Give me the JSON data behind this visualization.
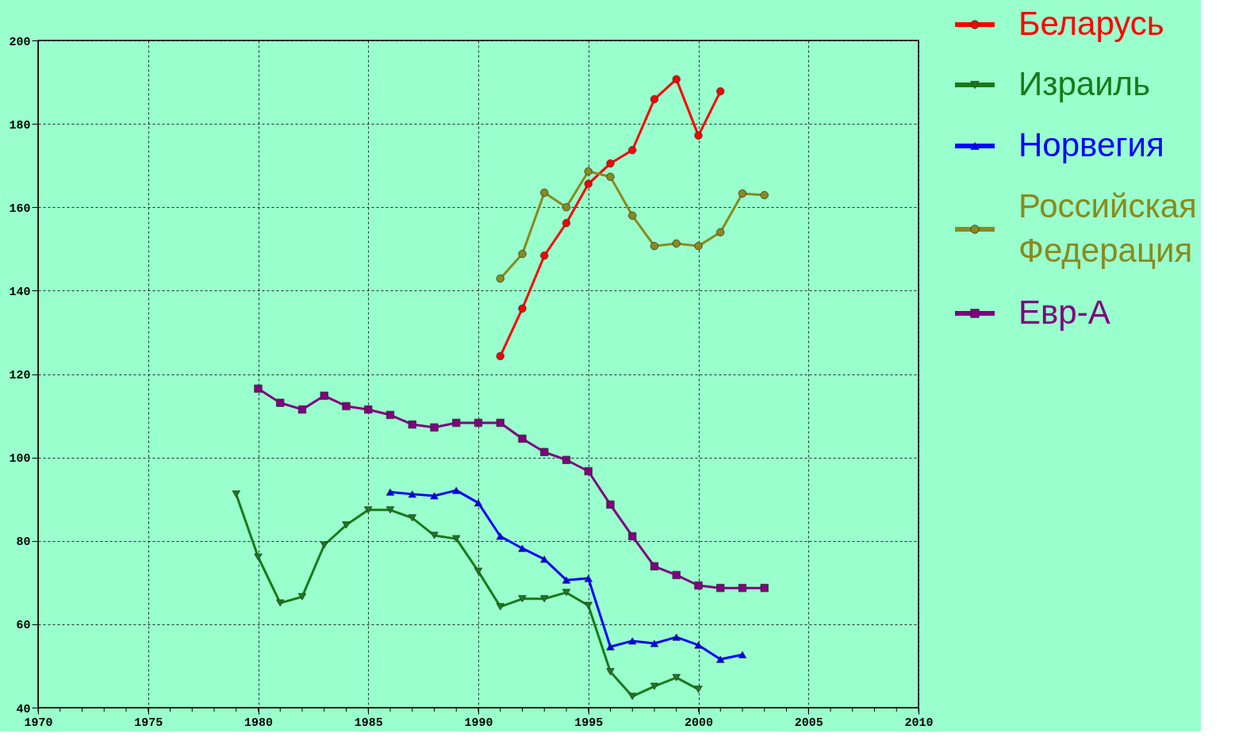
{
  "chart_data": {
    "type": "line",
    "xlim": [
      1970,
      2010
    ],
    "xticks": [
      1970,
      1975,
      1980,
      1985,
      1990,
      1995,
      2000,
      2005,
      2010
    ],
    "ylim": [
      40,
      200
    ],
    "yticks": [
      40,
      60,
      80,
      100,
      120,
      140,
      160,
      180,
      200
    ],
    "grid": true,
    "legend": "right",
    "line_style": "solid",
    "series": [
      {
        "name": "Беларусь",
        "color": "#ff0000",
        "marker": "circle",
        "x": [
          1991,
          1992,
          1993,
          1994,
          1995,
          1996,
          1997,
          1998,
          1999,
          2000,
          2001
        ],
        "values": [
          124.3,
          135.7,
          148.4,
          156.2,
          165.6,
          170.5,
          173.7,
          185.9,
          190.7,
          177.2,
          187.8
        ]
      },
      {
        "name": "Израиль",
        "color": "#1a7a1a",
        "marker": "triangle-down",
        "x": [
          1979,
          1980,
          1981,
          1982,
          1983,
          1984,
          1985,
          1986,
          1987,
          1988,
          1989,
          1990,
          1991,
          1992,
          1993,
          1994,
          1995,
          1996,
          1997,
          1998,
          1999,
          2000
        ],
        "values": [
          91.2,
          76.1,
          65.1,
          66.6,
          79.0,
          83.8,
          87.4,
          87.4,
          85.5,
          81.3,
          80.5,
          72.7,
          64.2,
          66.1,
          66.1,
          67.6,
          64.5,
          48.6,
          42.7,
          45.1,
          47.2,
          44.4
        ]
      },
      {
        "name": "Норвегия",
        "color": "#0000ff",
        "marker": "triangle",
        "x": [
          1986,
          1987,
          1988,
          1989,
          1990,
          1991,
          1992,
          1993,
          1994,
          1995,
          1996,
          1997,
          1998,
          1999,
          2000,
          2001,
          2002
        ],
        "values": [
          91.7,
          91.2,
          90.8,
          92.1,
          89.1,
          81.1,
          78.2,
          75.6,
          70.6,
          71.0,
          54.6,
          56.0,
          55.4,
          56.9,
          55.0,
          51.6,
          52.7
        ]
      },
      {
        "name": "Российская Федерация",
        "color": "#8a8a1e",
        "marker": "circle",
        "x": [
          1991,
          1992,
          1993,
          1994,
          1995,
          1996,
          1997,
          1998,
          1999,
          2000,
          2001,
          2002,
          2003
        ],
        "values": [
          142.9,
          148.8,
          163.5,
          160.0,
          168.6,
          167.3,
          158.0,
          150.7,
          151.3,
          150.7,
          154.0,
          163.3,
          162.9
        ]
      },
      {
        "name": "Евр-А",
        "color": "#800080",
        "marker": "square",
        "x": [
          1980,
          1981,
          1982,
          1983,
          1984,
          1985,
          1986,
          1987,
          1988,
          1989,
          1990,
          1991,
          1992,
          1993,
          1994,
          1995,
          1996,
          1997,
          1998,
          1999,
          2000,
          2001,
          2002,
          2003
        ],
        "values": [
          116.5,
          113.1,
          111.5,
          114.8,
          112.3,
          111.5,
          110.2,
          107.9,
          107.2,
          108.3,
          108.3,
          108.3,
          104.5,
          101.3,
          99.4,
          96.7,
          88.7,
          81.1,
          73.9,
          71.8,
          69.3,
          68.7,
          68.7,
          68.7
        ]
      }
    ]
  }
}
